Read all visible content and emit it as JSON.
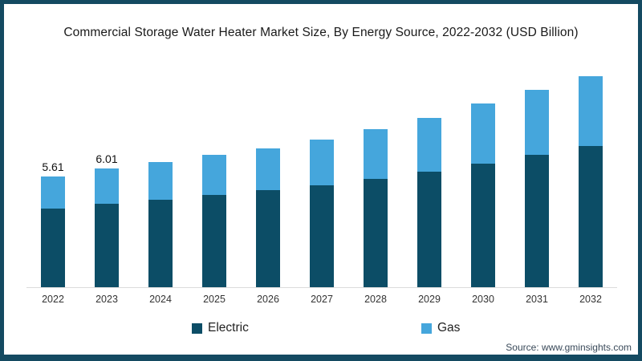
{
  "title": "Commercial Storage Water Heater Market Size, By Energy Source, 2022-2032 (USD Billion)",
  "source_note": "Source: www.gminsights.com",
  "colors": {
    "electric": "#0c4d66",
    "gas": "#45a6dc",
    "frame_border": "#144a61",
    "axis_line": "#dcdcdc",
    "title_text": "#1a1a1a"
  },
  "legend": {
    "items": [
      {
        "label": "Electric",
        "color": "#0c4d66"
      },
      {
        "label": "Gas",
        "color": "#45a6dc"
      }
    ]
  },
  "chart_data": {
    "type": "bar",
    "stacked": true,
    "title": "Commercial Storage Water Heater Market Size, By Energy Source, 2022-2032 (USD Billion)",
    "xlabel": "",
    "ylabel": "USD Billion",
    "categories": [
      "2022",
      "2023",
      "2024",
      "2025",
      "2026",
      "2027",
      "2028",
      "2029",
      "2030",
      "2031",
      "2032"
    ],
    "series": [
      {
        "name": "Electric",
        "color": "#0c4d66",
        "values": [
          3.98,
          4.22,
          4.43,
          4.67,
          4.91,
          5.16,
          5.49,
          5.85,
          6.26,
          6.7,
          7.15
        ]
      },
      {
        "name": "Gas",
        "color": "#45a6dc",
        "values": [
          1.63,
          1.79,
          1.91,
          2.04,
          2.12,
          2.32,
          2.52,
          2.73,
          3.05,
          3.3,
          3.54
        ]
      }
    ],
    "totals": [
      5.61,
      6.01,
      6.34,
      6.71,
      7.03,
      7.48,
      8.01,
      8.58,
      9.31,
      10.0,
      10.69
    ],
    "total_labels": [
      "5.61",
      "6.01",
      null,
      null,
      null,
      null,
      null,
      null,
      null,
      null,
      null
    ],
    "ylim": [
      0,
      11
    ],
    "grid": false,
    "y_axis_shown": false,
    "legend_position": "bottom"
  }
}
